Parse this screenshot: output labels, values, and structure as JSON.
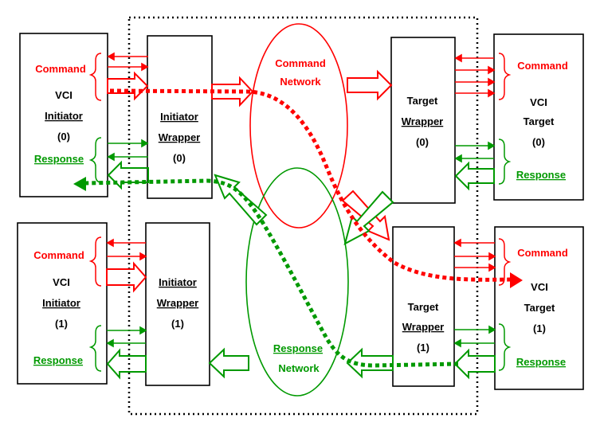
{
  "colors": {
    "command": "#ff0000",
    "response": "#009900",
    "stroke": "#000000"
  },
  "vci_initiator_0": {
    "command": "Command",
    "line1": "VCI",
    "line2": "Initiator",
    "line3": "(0)",
    "response": "Response"
  },
  "vci_initiator_1": {
    "command": "Command",
    "line1": "VCI",
    "line2": "Initiator",
    "line3": "(1)",
    "response": "Response"
  },
  "initiator_wrapper_0": {
    "line1": "Initiator",
    "line2": "Wrapper",
    "line3": "(0)"
  },
  "initiator_wrapper_1": {
    "line1": "Initiator",
    "line2": "Wrapper",
    "line3": "(1)"
  },
  "command_network": {
    "line1": "Command",
    "line2": "Network"
  },
  "response_network": {
    "line1": "Response",
    "line2": "Network"
  },
  "target_wrapper_0": {
    "line1": "Target",
    "line2": "Wrapper",
    "line3": "(0)"
  },
  "target_wrapper_1": {
    "line1": "Target",
    "line2": "Wrapper",
    "line3": "(1)"
  },
  "vci_target_0": {
    "command": "Command",
    "line1": "VCI",
    "line2": "Target",
    "line3": "(0)",
    "response": "Response"
  },
  "vci_target_1": {
    "command": "Command",
    "line1": "VCI",
    "line2": "Target",
    "line3": "(1)",
    "response": "Response"
  }
}
